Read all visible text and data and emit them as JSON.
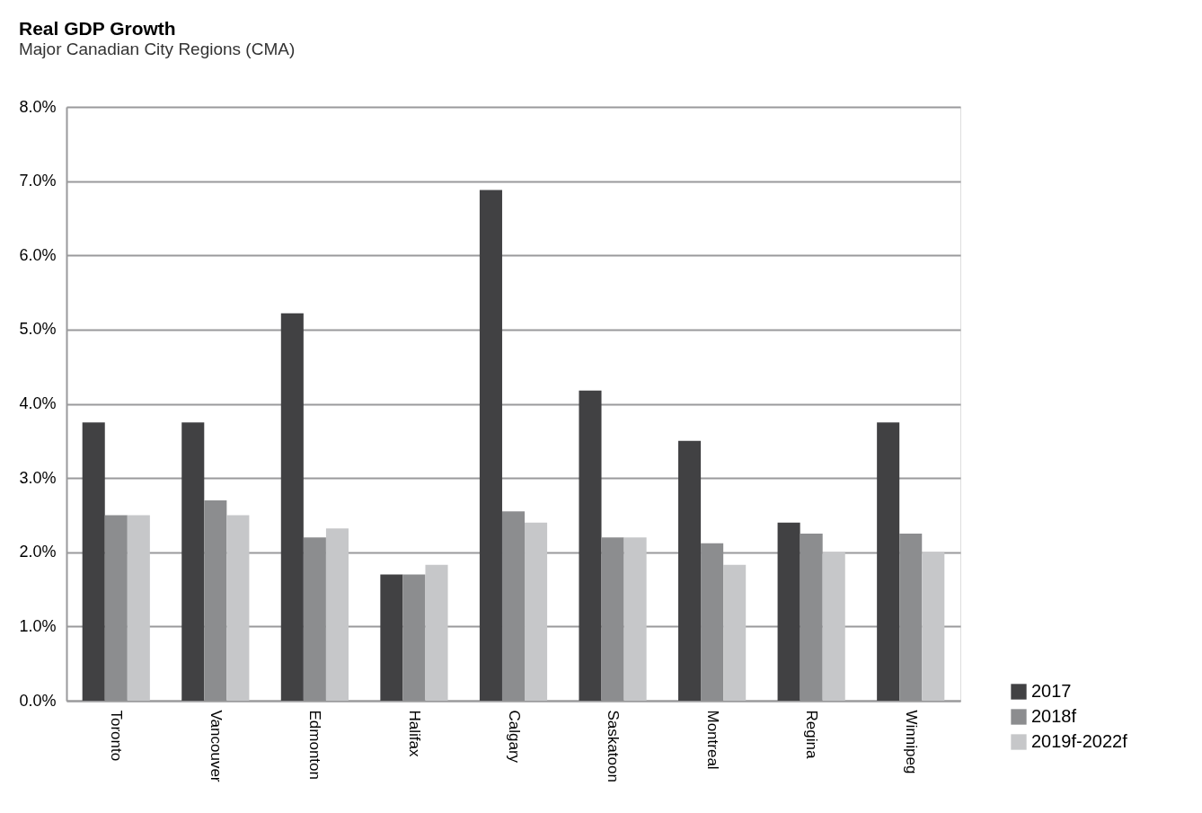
{
  "chart_data": {
    "type": "bar",
    "title": "Real GDP Growth",
    "subtitle": "Major Canadian City Regions (CMA)",
    "categories": [
      "Toronto",
      "Vancouver",
      "Edmonton",
      "Halifax",
      "Calgary",
      "Saskatoon",
      "Montreal",
      "Regina",
      "Winnipeg"
    ],
    "series": [
      {
        "name": "2017",
        "color": "#414143",
        "values": [
          3.75,
          3.75,
          5.22,
          1.7,
          6.88,
          4.18,
          3.5,
          2.4,
          3.75
        ]
      },
      {
        "name": "2018f",
        "color": "#8c8d8f",
        "values": [
          2.5,
          2.7,
          2.2,
          1.7,
          2.55,
          2.2,
          2.12,
          2.25,
          2.25
        ]
      },
      {
        "name": "2019f-2022f",
        "color": "#c6c7c9",
        "values": [
          2.5,
          2.5,
          2.32,
          1.83,
          2.4,
          2.2,
          1.83,
          2.0,
          2.0
        ]
      }
    ],
    "ylim": [
      0,
      8
    ],
    "yticks": [
      {
        "value": 0,
        "label": "0.0%"
      },
      {
        "value": 1,
        "label": "1.0%"
      },
      {
        "value": 2,
        "label": "2.0%"
      },
      {
        "value": 3,
        "label": "3.0%"
      },
      {
        "value": 4,
        "label": "4.0%"
      },
      {
        "value": 5,
        "label": "5.0%"
      },
      {
        "value": 6,
        "label": "6.0%"
      },
      {
        "value": 7,
        "label": "7.0%"
      },
      {
        "value": 8,
        "label": "8.0%"
      }
    ],
    "grid": "y",
    "legend": "bottom right"
  }
}
